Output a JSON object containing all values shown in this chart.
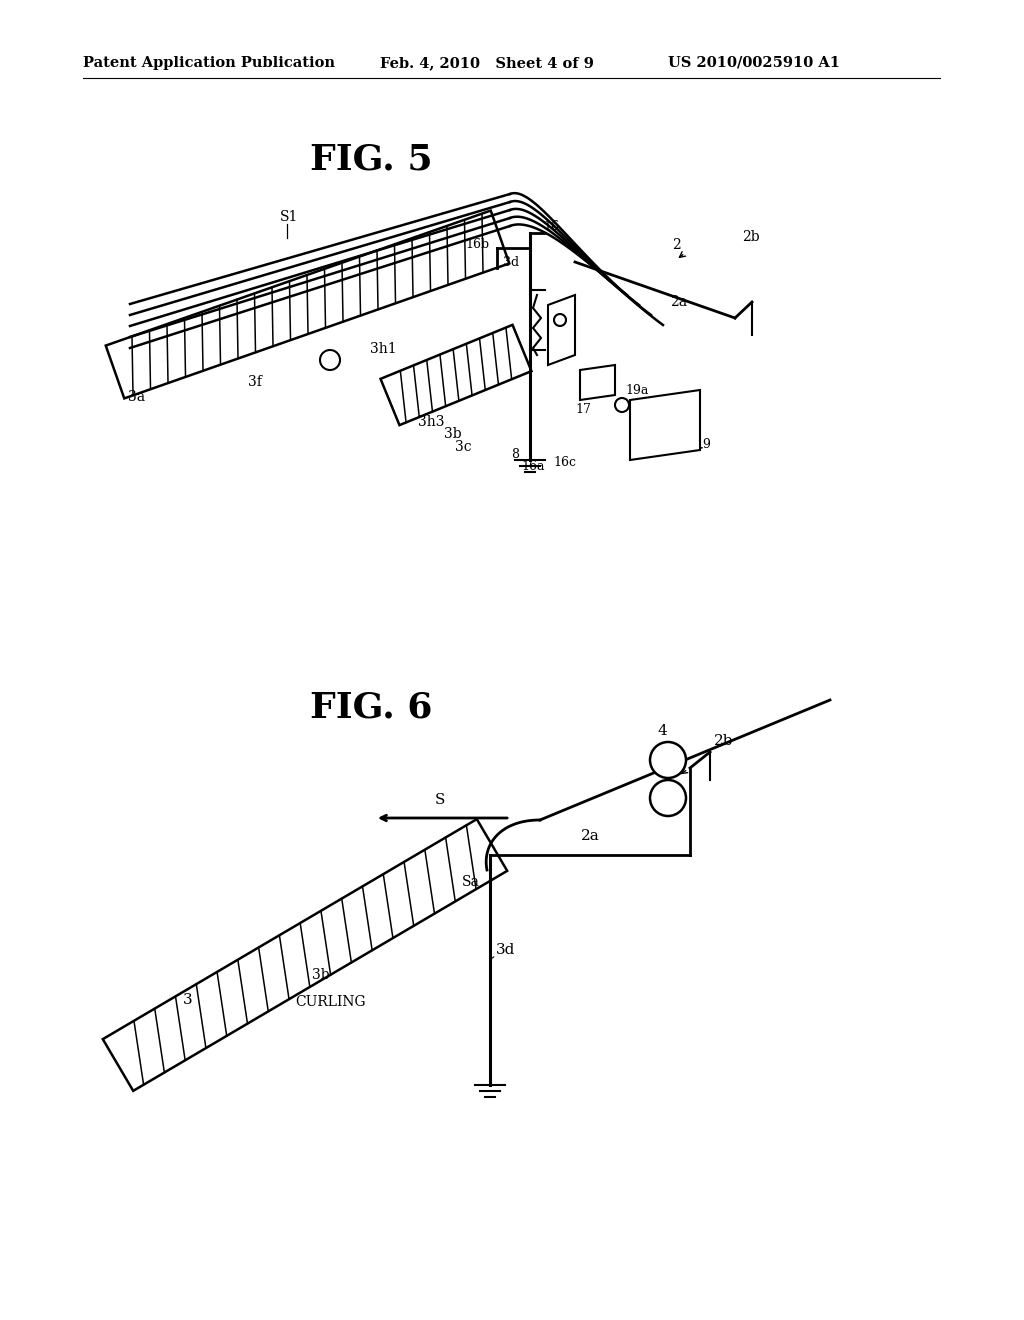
{
  "bg_color": "#ffffff",
  "header_left": "Patent Application Publication",
  "header_center": "Feb. 4, 2010   Sheet 4 of 9",
  "header_right": "US 2010/0025910 A1",
  "fig5_title": "FIG. 5",
  "fig6_title": "FIG. 6"
}
